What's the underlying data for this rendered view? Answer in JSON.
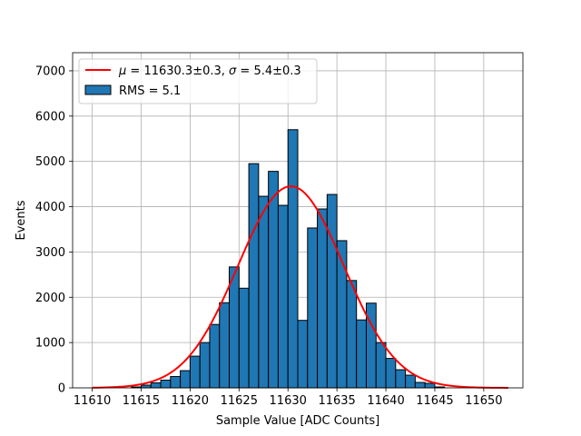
{
  "chart_data": {
    "type": "bar",
    "title": "",
    "xlabel": "Sample Value [ADC Counts]",
    "ylabel": "Events",
    "xlim": [
      11608,
      11654
    ],
    "ylim": [
      0,
      7400
    ],
    "xticks": [
      11610,
      11615,
      11620,
      11625,
      11630,
      11635,
      11640,
      11645,
      11650
    ],
    "yticks": [
      0,
      1000,
      2000,
      3000,
      4000,
      5000,
      6000,
      7000
    ],
    "grid": true,
    "legend_position": "top-left",
    "bin_width": 1,
    "histogram": {
      "name": "RMS = 5.1",
      "color": "#1f77b4",
      "edgecolor": "#000000",
      "bin_starts": [
        11614,
        11615,
        11616,
        11617,
        11618,
        11619,
        11620,
        11621,
        11622,
        11623,
        11624,
        11625,
        11626,
        11627,
        11628,
        11629,
        11630,
        11631,
        11632,
        11633,
        11634,
        11635,
        11636,
        11637,
        11638,
        11639,
        11640,
        11641,
        11642,
        11643,
        11644,
        11645
      ],
      "values": [
        20,
        60,
        110,
        170,
        250,
        380,
        700,
        1000,
        1400,
        1880,
        2670,
        2200,
        4950,
        4230,
        4780,
        4030,
        5700,
        1490,
        3530,
        3950,
        4270,
        3250,
        2370,
        1500,
        1870,
        1000,
        650,
        400,
        280,
        120,
        100,
        20
      ]
    },
    "fit": {
      "name_parts": [
        "μ",
        " = 11630.3±0.3, ",
        "σ",
        " = 5.4±0.3"
      ],
      "color": "#ff0000",
      "mu": 11630.3,
      "sigma": 5.4,
      "amplitude": 4450,
      "x_range": [
        11610,
        11652.5
      ]
    }
  }
}
